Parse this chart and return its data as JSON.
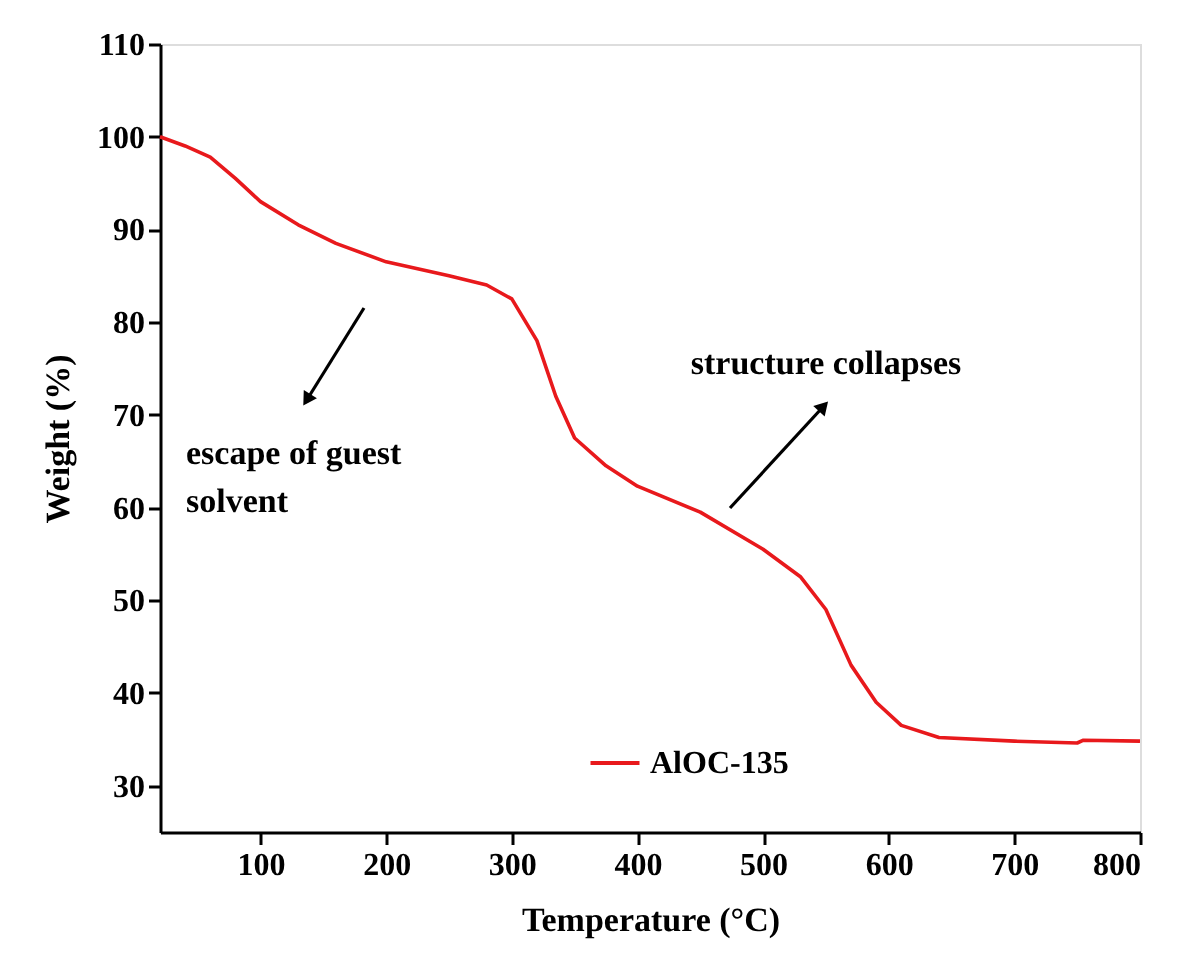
{
  "chart_data": {
    "type": "line",
    "xlabel": "Temperature (°C)",
    "ylabel": "Weight (%)",
    "x": [
      20,
      40,
      60,
      80,
      100,
      130,
      160,
      200,
      250,
      280,
      300,
      320,
      335,
      350,
      375,
      400,
      450,
      500,
      530,
      550,
      570,
      590,
      610,
      640,
      700,
      750,
      755,
      800
    ],
    "series": [
      {
        "name": "AlOC-135",
        "color": "#e8191c",
        "values": [
          100,
          99,
          97.8,
          95.5,
          93,
          90.5,
          88.5,
          86.5,
          85,
          84,
          82.5,
          78,
          72,
          67.5,
          64.5,
          62.3,
          59.5,
          55.5,
          52.5,
          49,
          43,
          39,
          36.5,
          35.2,
          34.8,
          34.6,
          34.9,
          34.8
        ]
      }
    ],
    "xlim": [
      20,
      800
    ],
    "xticks": [
      100,
      200,
      300,
      400,
      500,
      600,
      700,
      800
    ],
    "ylim": [
      25,
      110
    ],
    "yticks": [
      30,
      40,
      50,
      60,
      70,
      80,
      90,
      100,
      110
    ],
    "annotations": [
      "escape of guest solvent",
      "structure collapses"
    ],
    "legend": "bottom",
    "grid": false,
    "marker": "none",
    "line_style": "solid"
  }
}
